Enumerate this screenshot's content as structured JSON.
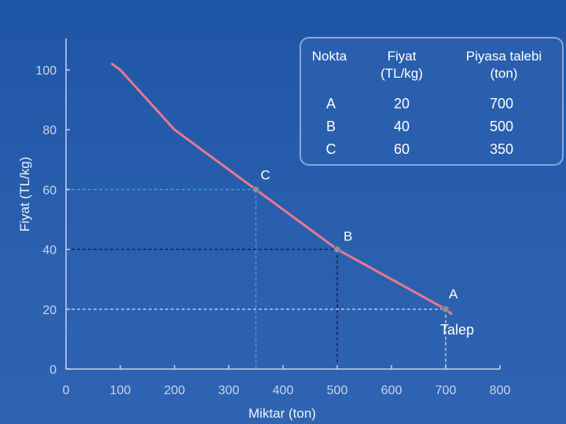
{
  "chart_data": {
    "type": "line",
    "xlabel": "Miktar (ton)",
    "ylabel": "Fiyat (TL/kg)",
    "xlim": [
      0,
      800
    ],
    "ylim": [
      0,
      100
    ],
    "xticks": [
      0,
      100,
      200,
      300,
      400,
      500,
      600,
      700,
      800
    ],
    "yticks": [
      0,
      20,
      40,
      60,
      80,
      100
    ],
    "series": [
      {
        "name": "Talep",
        "color": "#e8798f",
        "x": [
          85,
          100,
          200,
          350,
          500,
          700,
          710
        ],
        "y": [
          102,
          100,
          80,
          60,
          40,
          20,
          18.5
        ]
      }
    ],
    "points": [
      {
        "label": "C",
        "x": 350,
        "y": 60,
        "guide_color": "#3ea0de"
      },
      {
        "label": "B",
        "x": 500,
        "y": 40,
        "guide_color": "#0f1f5c"
      },
      {
        "label": "A",
        "x": 700,
        "y": 20,
        "guide_color": "#c2d2ee"
      }
    ],
    "curve_label": "Talep"
  },
  "table": {
    "headers": [
      [
        "Nokta"
      ],
      [
        "Fiyat",
        "(TL/kg)"
      ],
      [
        "Piyasa talebi",
        "(ton)"
      ]
    ],
    "rows": [
      [
        "A",
        "20",
        "700"
      ],
      [
        "B",
        "40",
        "500"
      ],
      [
        "C",
        "60",
        "350"
      ]
    ]
  }
}
